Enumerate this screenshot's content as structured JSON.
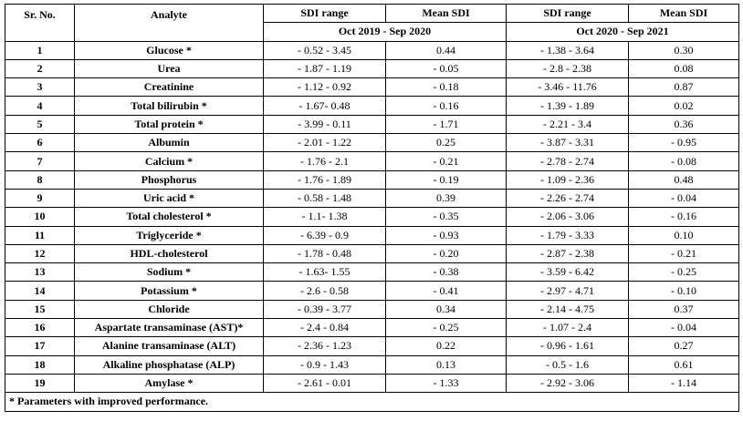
{
  "table": {
    "headers": {
      "sr_no": "Sr. No.",
      "analyte": "Analyte",
      "sdi_range_1": "SDI range",
      "mean_sdi_1": "Mean SDI",
      "sdi_range_2": "SDI range",
      "mean_sdi_2": "Mean SDI",
      "period_1": "Oct 2019 - Sep 2020",
      "period_2": "Oct 2020 - Sep 2021"
    },
    "rows": [
      {
        "sr": "1",
        "analyte": "Glucose *",
        "r1": "- 0.52 - 3.45",
        "m1": "0.44",
        "r2": "- 1.38 - 3.64",
        "m2": "0.30"
      },
      {
        "sr": "2",
        "analyte": "Urea",
        "r1": "- 1.87 - 1.19",
        "m1": "- 0.05",
        "r2": "- 2.8 - 2.38",
        "m2": "0.08"
      },
      {
        "sr": "3",
        "analyte": "Creatinine",
        "r1": "- 1.12 - 0.92",
        "m1": "- 0.18",
        "r2": "- 3.46 - 11.76",
        "m2": "0.87"
      },
      {
        "sr": "4",
        "analyte": "Total bilirubin *",
        "r1": "- 1.67- 0.48",
        "m1": "- 0.16",
        "r2": "- 1.39 - 1.89",
        "m2": "0.02"
      },
      {
        "sr": "5",
        "analyte": "Total protein *",
        "r1": "- 3.99 - 0.11",
        "m1": "- 1.71",
        "r2": "- 2.21 - 3.4",
        "m2": "0.36"
      },
      {
        "sr": "6",
        "analyte": "Albumin",
        "r1": "- 2.01 - 1.22",
        "m1": "0.25",
        "r2": "- 3.87 - 3.31",
        "m2": "- 0.95"
      },
      {
        "sr": "7",
        "analyte": "Calcium *",
        "r1": "- 1.76 - 2.1",
        "m1": "- 0.21",
        "r2": "- 2.78 - 2.74",
        "m2": "- 0.08"
      },
      {
        "sr": "8",
        "analyte": "Phosphorus",
        "r1": "- 1.76 - 1.89",
        "m1": "- 0.19",
        "r2": "- 1.09 - 2.36",
        "m2": "0.48"
      },
      {
        "sr": "9",
        "analyte": "Uric acid *",
        "r1": "- 0.58 - 1.48",
        "m1": "0.39",
        "r2": "- 2.26 - 2.74",
        "m2": "- 0.04"
      },
      {
        "sr": "10",
        "analyte": "Total cholesterol *",
        "r1": "- 1.1- 1.38",
        "m1": "- 0.35",
        "r2": "- 2.06 - 3.06",
        "m2": "- 0.16"
      },
      {
        "sr": "11",
        "analyte": "Triglyceride *",
        "r1": "- 6.39 - 0.9",
        "m1": "- 0.93",
        "r2": "- 1.79 - 3.33",
        "m2": "0.10"
      },
      {
        "sr": "12",
        "analyte": "HDL-cholesterol",
        "r1": "- 1.78 - 0.48",
        "m1": "- 0.20",
        "r2": "- 2.87 - 2.38",
        "m2": "- 0.21"
      },
      {
        "sr": "13",
        "analyte": "Sodium *",
        "r1": "- 1.63- 1.55",
        "m1": "- 0.38",
        "r2": "- 3.59 - 6.42",
        "m2": "- 0.25"
      },
      {
        "sr": "14",
        "analyte": "Potassium *",
        "r1": "- 2.6 - 0.58",
        "m1": "- 0.41",
        "r2": "- 2.97 - 4.71",
        "m2": "- 0.10"
      },
      {
        "sr": "15",
        "analyte": "Chloride",
        "r1": "- 0.39 - 3.77",
        "m1": "0.34",
        "r2": "- 2.14 - 4.75",
        "m2": "0.37"
      },
      {
        "sr": "16",
        "analyte": "Aspartate transaminase (AST)*",
        "r1": "- 2.4 - 0.84",
        "m1": "- 0.25",
        "r2": "- 1.07 - 2.4",
        "m2": "- 0.04"
      },
      {
        "sr": "17",
        "analyte": "Alanine transaminase (ALT)",
        "r1": "- 2.36 - 1.23",
        "m1": "0.22",
        "r2": "- 0.96 - 1.61",
        "m2": "0.27"
      },
      {
        "sr": "18",
        "analyte": "Alkaline phosphatase (ALP)",
        "r1": "- 0.9 - 1.43",
        "m1": "0.13",
        "r2": "- 0.5 - 1.6",
        "m2": "0.61"
      },
      {
        "sr": "19",
        "analyte": "Amylase *",
        "r1": "- 2.61 - 0.01",
        "m1": "- 1.33",
        "r2": "- 2.92 - 3.06",
        "m2": "- 1.14"
      }
    ],
    "footnote": "* Parameters with improved performance."
  }
}
